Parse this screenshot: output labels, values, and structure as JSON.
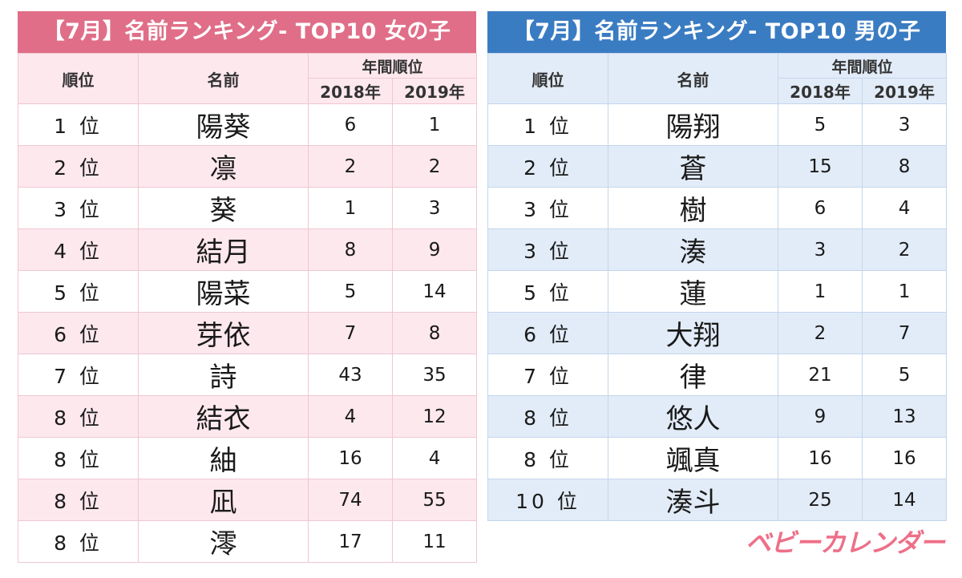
{
  "girls": {
    "title": "【7月】名前ランキング- TOP10 女の子",
    "headers": {
      "rank": "順位",
      "name": "名前",
      "group": "年間順位",
      "y2018": "2018年",
      "y2019": "2019年"
    },
    "rows": [
      {
        "rank": "1 位",
        "name": "陽葵",
        "y2018": "6",
        "y2019": "1"
      },
      {
        "rank": "2 位",
        "name": "凛",
        "y2018": "2",
        "y2019": "2"
      },
      {
        "rank": "3 位",
        "name": "葵",
        "y2018": "1",
        "y2019": "3"
      },
      {
        "rank": "4 位",
        "name": "結月",
        "y2018": "8",
        "y2019": "9"
      },
      {
        "rank": "5 位",
        "name": "陽菜",
        "y2018": "5",
        "y2019": "14"
      },
      {
        "rank": "6 位",
        "name": "芽依",
        "y2018": "7",
        "y2019": "8"
      },
      {
        "rank": "7 位",
        "name": "詩",
        "y2018": "43",
        "y2019": "35"
      },
      {
        "rank": "8 位",
        "name": "結衣",
        "y2018": "4",
        "y2019": "12"
      },
      {
        "rank": "8 位",
        "name": "紬",
        "y2018": "16",
        "y2019": "4"
      },
      {
        "rank": "8 位",
        "name": "凪",
        "y2018": "74",
        "y2019": "55"
      },
      {
        "rank": "8 位",
        "name": "澪",
        "y2018": "17",
        "y2019": "11"
      }
    ]
  },
  "boys": {
    "title": "【7月】名前ランキング- TOP10 男の子",
    "headers": {
      "rank": "順位",
      "name": "名前",
      "group": "年間順位",
      "y2018": "2018年",
      "y2019": "2019年"
    },
    "rows": [
      {
        "rank": "1 位",
        "name": "陽翔",
        "y2018": "5",
        "y2019": "3"
      },
      {
        "rank": "2 位",
        "name": "蒼",
        "y2018": "15",
        "y2019": "8"
      },
      {
        "rank": "3 位",
        "name": "樹",
        "y2018": "6",
        "y2019": "4"
      },
      {
        "rank": "3 位",
        "name": "湊",
        "y2018": "3",
        "y2019": "2"
      },
      {
        "rank": "5 位",
        "name": "蓮",
        "y2018": "1",
        "y2019": "1"
      },
      {
        "rank": "6 位",
        "name": "大翔",
        "y2018": "2",
        "y2019": "7"
      },
      {
        "rank": "7 位",
        "name": "律",
        "y2018": "21",
        "y2019": "5"
      },
      {
        "rank": "8 位",
        "name": "悠人",
        "y2018": "9",
        "y2019": "13"
      },
      {
        "rank": "8 位",
        "name": "颯真",
        "y2018": "16",
        "y2019": "16"
      },
      {
        "rank": "10 位",
        "name": "湊斗",
        "y2018": "25",
        "y2019": "14"
      }
    ]
  },
  "logo": {
    "text": "ベビーカレンダー"
  },
  "colors": {
    "girls_accent": "#e06e88",
    "boys_accent": "#3a7cc2",
    "logo": "#ee6f88"
  }
}
